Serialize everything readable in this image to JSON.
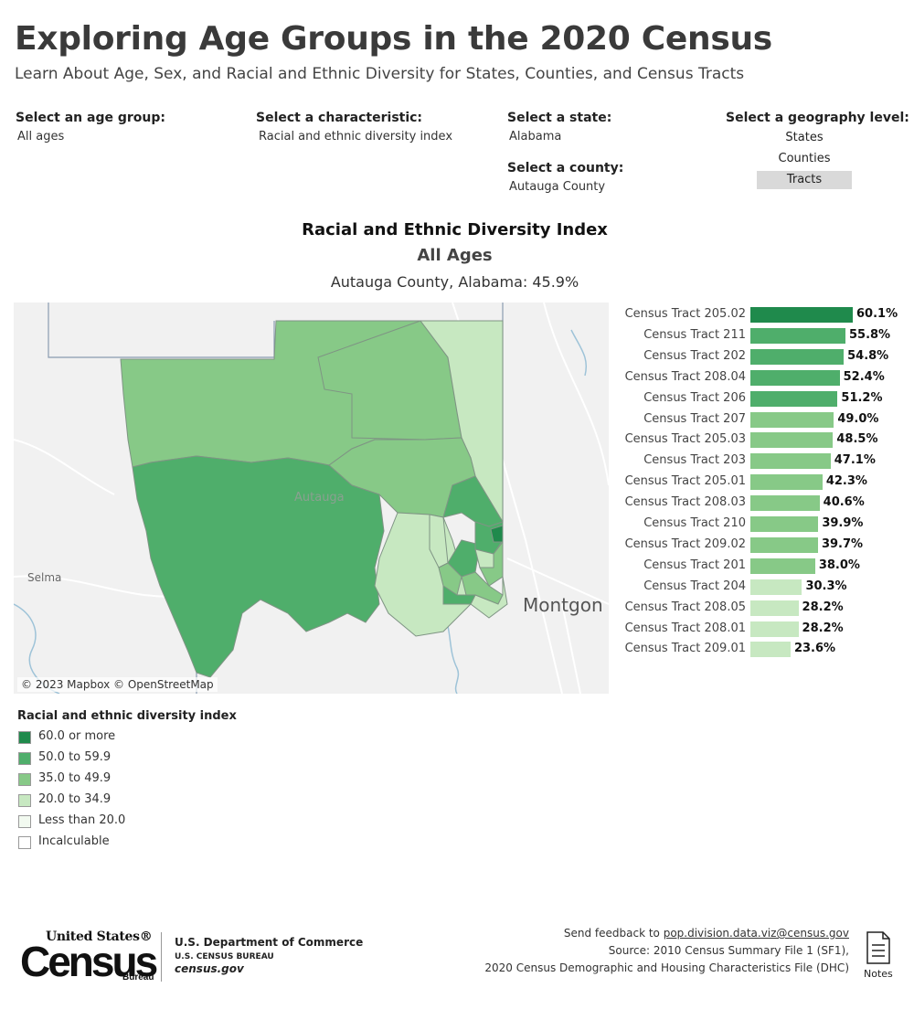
{
  "header": {
    "title": "Exploring Age Groups in the 2020 Census",
    "subtitle": "Learn About Age, Sex, and Racial and Ethnic Diversity for States, Counties, and Census Tracts"
  },
  "controls": {
    "age_group": {
      "label": "Select an age group:",
      "value": "All ages"
    },
    "characteristic": {
      "label": "Select a characteristic:",
      "value": "Racial and ethnic diversity index"
    },
    "state": {
      "label": "Select a state:",
      "value": "Alabama"
    },
    "county": {
      "label": "Select a county:",
      "value": "Autauga County"
    },
    "geography": {
      "label": "Select a geography level:",
      "options": [
        "States",
        "Counties",
        "Tracts"
      ],
      "selected": "Tracts"
    }
  },
  "chart_header": {
    "title": "Racial and Ethnic Diversity Index",
    "subtitle": "All Ages",
    "summary": "Autauga County, Alabama: 45.9%"
  },
  "map": {
    "labels": {
      "county": "Autauga",
      "city1": "Selma",
      "city2": "Montgon"
    },
    "attribution": "© 2023 Mapbox © OpenStreetMap",
    "icons": [
      "notes-icon"
    ]
  },
  "colors": {
    "c60": "#1f8a4c",
    "c50": "#4fae6b",
    "c35": "#87c987",
    "c20": "#c7e8c1",
    "c0": "#f2faf0",
    "na": "#ffffff"
  },
  "chart_data": {
    "type": "bar",
    "orientation": "horizontal",
    "categories": [
      "Census Tract 205.02",
      "Census Tract 211",
      "Census Tract 202",
      "Census Tract 208.04",
      "Census Tract 206",
      "Census Tract 207",
      "Census Tract 205.03",
      "Census Tract 203",
      "Census Tract 205.01",
      "Census Tract 208.03",
      "Census Tract 210",
      "Census Tract 209.02",
      "Census Tract 201",
      "Census Tract 204",
      "Census Tract 208.05",
      "Census Tract 208.01",
      "Census Tract 209.01"
    ],
    "values": [
      60.1,
      55.8,
      54.8,
      52.4,
      51.2,
      49.0,
      48.5,
      47.1,
      42.3,
      40.6,
      39.9,
      39.7,
      38.0,
      30.3,
      28.2,
      28.2,
      23.6
    ],
    "value_labels": [
      "60.1%",
      "55.8%",
      "54.8%",
      "52.4%",
      "51.2%",
      "49.0%",
      "48.5%",
      "47.1%",
      "42.3%",
      "40.6%",
      "39.9%",
      "39.7%",
      "38.0%",
      "30.3%",
      "28.2%",
      "28.2%",
      "23.6%"
    ]
  },
  "legend": {
    "title": "Racial and ethnic diversity index",
    "items": [
      {
        "label": "60.0 or more",
        "color": "#1f8a4c"
      },
      {
        "label": "50.0 to 59.9",
        "color": "#4fae6b"
      },
      {
        "label": "35.0 to 49.9",
        "color": "#87c987"
      },
      {
        "label": "20.0 to 34.9",
        "color": "#c7e8c1"
      },
      {
        "label": "Less than 20.0",
        "color": "#f2faf0"
      },
      {
        "label": "Incalculable",
        "color": "#ffffff"
      }
    ]
  },
  "footer": {
    "logo_united_states": "United States®",
    "logo_census": "Census",
    "logo_bureau": "Bureau",
    "dept": "U.S. Department of Commerce",
    "bureau": "U.S. CENSUS BUREAU",
    "site": "census.gov",
    "feedback_prefix": "Send feedback to ",
    "feedback_email": "pop.division.data.viz@census.gov",
    "source1": "Source: 2010 Census Summary File 1 (SF1),",
    "source2": "2020 Census Demographic and Housing Characteristics File (DHC)",
    "notes_label": "Notes"
  }
}
